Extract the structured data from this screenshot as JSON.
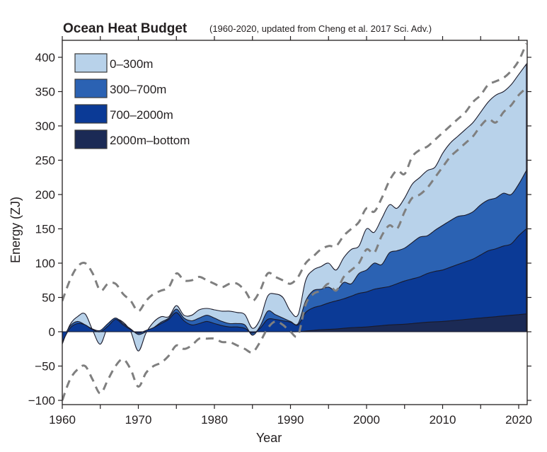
{
  "chart_data": {
    "type": "area",
    "title": "Ocean Heat Budget",
    "subtitle": "(1960-2020, updated from Cheng et al. 2017 Sci. Adv.)",
    "xlabel": "Year",
    "ylabel": "Energy (ZJ)",
    "xlim": [
      1960,
      2021
    ],
    "ylim": [
      -105,
      425
    ],
    "xticks": [
      1960,
      1970,
      1980,
      1990,
      2000,
      2010,
      2020
    ],
    "xtick_labels": [
      "1960",
      "1970",
      "1980",
      "1990",
      "2000",
      "2010",
      "2020"
    ],
    "xminor_ticks": [
      1965,
      1975,
      1985,
      1995,
      2005,
      2015
    ],
    "yticks": [
      -100,
      -50,
      0,
      50,
      100,
      150,
      200,
      250,
      300,
      350,
      400
    ],
    "ytick_labels": [
      "−100",
      "−50",
      "0",
      "50",
      "100",
      "150",
      "200",
      "250",
      "300",
      "350",
      "400"
    ],
    "grid": false,
    "legend_position": "top-left",
    "stacked": true,
    "x": [
      1960,
      1961,
      1962,
      1963,
      1964,
      1965,
      1966,
      1967,
      1968,
      1969,
      1970,
      1971,
      1972,
      1973,
      1974,
      1975,
      1976,
      1977,
      1978,
      1979,
      1980,
      1981,
      1982,
      1983,
      1984,
      1985,
      1986,
      1987,
      1988,
      1989,
      1990,
      1991,
      1992,
      1993,
      1994,
      1995,
      1996,
      1997,
      1998,
      1999,
      2000,
      2001,
      2002,
      2003,
      2004,
      2005,
      2006,
      2007,
      2008,
      2009,
      2010,
      2011,
      2012,
      2013,
      2014,
      2015,
      2016,
      2017,
      2018,
      2019,
      2020,
      2021
    ],
    "series": [
      {
        "name": "2000m–bottom",
        "color": "#1b2a55",
        "cumulative_top": [
          0,
          0,
          0,
          0,
          0,
          0,
          0,
          0,
          0,
          0,
          0,
          0,
          0,
          0,
          0,
          0,
          0,
          0,
          0,
          0,
          0,
          0,
          0,
          0,
          0,
          0,
          0,
          0,
          0,
          0,
          0,
          0,
          1,
          2,
          3,
          3.5,
          4,
          5,
          6,
          6.5,
          7,
          8,
          9,
          10,
          10.5,
          11,
          12,
          13,
          14,
          14.5,
          15,
          16,
          17,
          18,
          19,
          20,
          21,
          22,
          23,
          24,
          25,
          26
        ]
      },
      {
        "name": "700–2000m",
        "color": "#0b3a96",
        "cumulative_top": [
          -15,
          5,
          12,
          10,
          3,
          0,
          8,
          18,
          10,
          3,
          -2,
          2,
          6,
          12,
          18,
          28,
          16,
          10,
          12,
          15,
          12,
          9,
          7,
          7,
          5,
          -2,
          5,
          18,
          18,
          16,
          14,
          10,
          28,
          35,
          38,
          42,
          45,
          48,
          52,
          56,
          58,
          62,
          64,
          66,
          70,
          74,
          77,
          80,
          85,
          88,
          90,
          94,
          98,
          102,
          106,
          112,
          118,
          121,
          125,
          128,
          140,
          150
        ]
      },
      {
        "name": "300–700m",
        "color": "#2b62b3",
        "cumulative_top": [
          -12,
          8,
          15,
          10,
          4,
          2,
          12,
          20,
          12,
          4,
          -4,
          0,
          6,
          14,
          20,
          33,
          20,
          16,
          20,
          24,
          20,
          15,
          12,
          12,
          10,
          -5,
          8,
          30,
          25,
          20,
          15,
          12,
          45,
          60,
          62,
          65,
          60,
          72,
          70,
          85,
          90,
          100,
          98,
          115,
          118,
          122,
          130,
          138,
          140,
          148,
          155,
          162,
          168,
          170,
          175,
          185,
          192,
          195,
          202,
          200,
          215,
          235
        ]
      },
      {
        "name": "0–300m",
        "color": "#b8d2ea",
        "cumulative_top": [
          -18,
          10,
          22,
          26,
          2,
          -18,
          8,
          18,
          14,
          0,
          -28,
          -2,
          14,
          22,
          22,
          38,
          24,
          24,
          32,
          34,
          32,
          30,
          30,
          28,
          25,
          5,
          18,
          52,
          55,
          50,
          30,
          25,
          75,
          90,
          95,
          100,
          90,
          108,
          120,
          125,
          150,
          145,
          165,
          185,
          180,
          195,
          215,
          225,
          235,
          240,
          260,
          275,
          285,
          295,
          305,
          320,
          335,
          345,
          350,
          360,
          375,
          390
        ]
      }
    ],
    "uncertainty_bounds": {
      "style": "gray dashed",
      "color": "#7f7f7f",
      "upper": [
        45,
        75,
        95,
        100,
        85,
        60,
        70,
        70,
        55,
        45,
        30,
        45,
        55,
        60,
        65,
        85,
        75,
        75,
        80,
        75,
        70,
        65,
        70,
        70,
        60,
        45,
        60,
        85,
        80,
        75,
        70,
        80,
        100,
        110,
        120,
        125,
        125,
        140,
        150,
        160,
        180,
        175,
        195,
        220,
        235,
        230,
        255,
        265,
        270,
        280,
        290,
        300,
        310,
        320,
        335,
        345,
        360,
        365,
        370,
        380,
        395,
        420
      ],
      "lower": [
        -100,
        -70,
        -55,
        -50,
        -70,
        -90,
        -70,
        -50,
        -40,
        -55,
        -80,
        -60,
        -50,
        -45,
        -35,
        -20,
        -25,
        -20,
        -10,
        -10,
        -10,
        -15,
        -15,
        -20,
        -25,
        -30,
        -15,
        5,
        15,
        10,
        0,
        -5,
        40,
        55,
        60,
        70,
        60,
        80,
        90,
        100,
        120,
        115,
        140,
        155,
        150,
        175,
        195,
        200,
        210,
        225,
        240,
        255,
        265,
        275,
        285,
        300,
        310,
        305,
        320,
        330,
        345,
        355
      ]
    }
  }
}
